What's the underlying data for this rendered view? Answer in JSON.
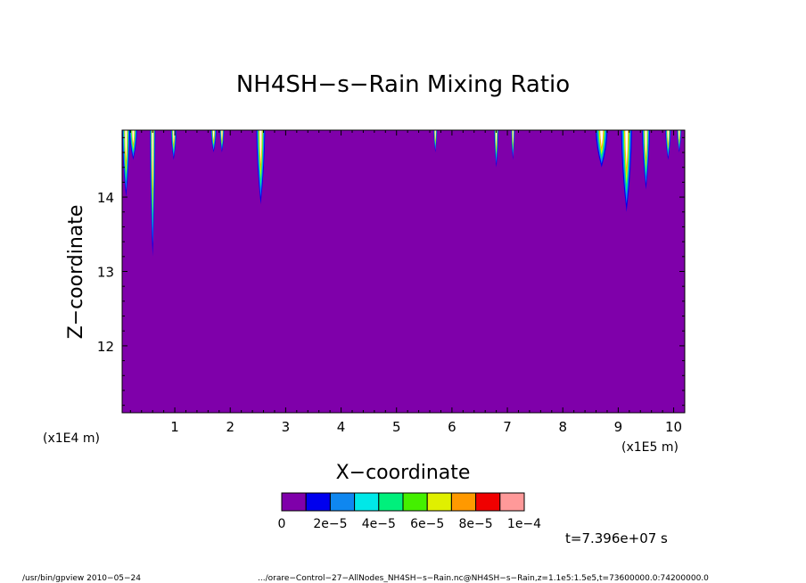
{
  "chart_data": {
    "type": "heatmap",
    "title": "NH4SH−s−Rain Mixing Ratio",
    "xlabel": "X−coordinate",
    "ylabel": "Z−coordinate",
    "x_unit_left": "(x1E4 m)",
    "x_unit_right": "(x1E5 m)",
    "xlim": [
      0.05,
      10.2
    ],
    "ylim": [
      11.1,
      14.9
    ],
    "x_ticks": [
      1,
      2,
      3,
      4,
      5,
      6,
      7,
      8,
      9,
      10
    ],
    "x_tick_labels": [
      "1",
      "2",
      "3",
      "4",
      "5",
      "6",
      "7",
      "8",
      "9",
      "10"
    ],
    "y_ticks": [
      12,
      13,
      14
    ],
    "y_tick_labels": [
      "12",
      "13",
      "14"
    ],
    "background_color": "#7f00aa",
    "colorbar": {
      "colors": [
        "#7f00aa",
        "#0000ee",
        "#0f87f0",
        "#00e8e8",
        "#00f07c",
        "#44f000",
        "#e0f000",
        "#ff9900",
        "#f00000",
        "#ff9999"
      ],
      "labels": [
        "0",
        "2e−5",
        "4e−5",
        "6e−5",
        "8e−5",
        "1e−4"
      ]
    },
    "plumes": [
      {
        "x": 0.12,
        "width": 0.14,
        "bottom": 14.0
      },
      {
        "x": 0.25,
        "width": 0.14,
        "bottom": 14.5
      },
      {
        "x": 0.6,
        "width": 0.1,
        "bottom": 13.2
      },
      {
        "x": 0.98,
        "width": 0.1,
        "bottom": 14.5
      },
      {
        "x": 1.7,
        "width": 0.1,
        "bottom": 14.6
      },
      {
        "x": 1.85,
        "width": 0.08,
        "bottom": 14.6
      },
      {
        "x": 2.55,
        "width": 0.16,
        "bottom": 13.9
      },
      {
        "x": 5.7,
        "width": 0.05,
        "bottom": 14.6
      },
      {
        "x": 6.8,
        "width": 0.08,
        "bottom": 14.4
      },
      {
        "x": 7.1,
        "width": 0.06,
        "bottom": 14.5
      },
      {
        "x": 8.7,
        "width": 0.22,
        "bottom": 14.4
      },
      {
        "x": 9.15,
        "width": 0.2,
        "bottom": 13.8
      },
      {
        "x": 9.5,
        "width": 0.14,
        "bottom": 14.1
      },
      {
        "x": 9.9,
        "width": 0.1,
        "bottom": 14.5
      },
      {
        "x": 10.1,
        "width": 0.08,
        "bottom": 14.6
      }
    ],
    "time_label": "t=7.396e+07 s"
  },
  "footer": {
    "left": "/usr/bin/gpview  2010−05−24",
    "right": ".../orare−Control−27−AllNodes_NH4SH−s−Rain.nc@NH4SH−s−Rain,z=1.1e5:1.5e5,t=73600000.0:74200000.0"
  }
}
